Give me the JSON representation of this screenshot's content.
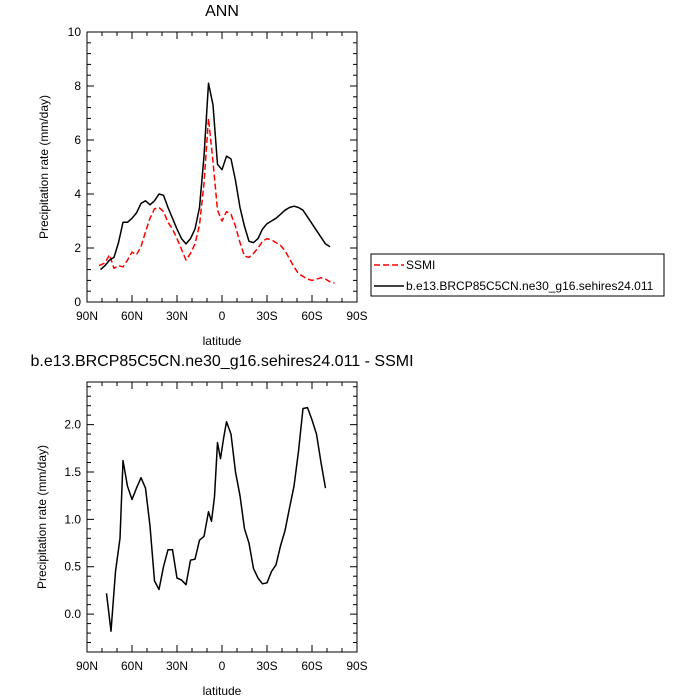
{
  "chart_data": [
    {
      "type": "line",
      "title": "ANN",
      "xlabel": "latitude",
      "ylabel": "Precipitation rate (mm/day)",
      "xlim": [
        90,
        -90
      ],
      "ylim": [
        0,
        10
      ],
      "x_tick_values": [
        90,
        60,
        30,
        0,
        -30,
        -60,
        -90
      ],
      "x_tick_labels": [
        "90N",
        "60N",
        "30N",
        "0",
        "30S",
        "60S",
        "90S"
      ],
      "y_tick_values": [
        0,
        2,
        4,
        6,
        8,
        10
      ],
      "y_tick_labels": [
        "0",
        "2",
        "4",
        "6",
        "8",
        "10"
      ],
      "legend_position": "right-outside",
      "series": [
        {
          "name": "SSMI",
          "color": "#ff0000",
          "dash": "dashed",
          "x": [
            82,
            78,
            75,
            72,
            69,
            66,
            63,
            60,
            57,
            54,
            51,
            48,
            45,
            42,
            39,
            36,
            33,
            30,
            27,
            24,
            21,
            18,
            15,
            12,
            9,
            6,
            3,
            0,
            -3,
            -6,
            -9,
            -12,
            -15,
            -18,
            -21,
            -24,
            -27,
            -30,
            -33,
            -36,
            -39,
            -42,
            -45,
            -48,
            -51,
            -54,
            -57,
            -60,
            -63,
            -66,
            -69,
            -72,
            -75
          ],
          "y": [
            1.35,
            1.45,
            1.75,
            1.25,
            1.35,
            1.3,
            1.55,
            1.85,
            1.75,
            2.05,
            2.6,
            3.1,
            3.45,
            3.5,
            3.35,
            2.95,
            2.7,
            2.35,
            1.95,
            1.55,
            1.8,
            2.15,
            2.85,
            4.4,
            6.8,
            5.2,
            3.4,
            3.0,
            3.35,
            3.25,
            2.8,
            2.2,
            1.7,
            1.65,
            1.8,
            2.0,
            2.25,
            2.35,
            2.3,
            2.2,
            2.1,
            1.9,
            1.6,
            1.3,
            1.05,
            0.95,
            0.85,
            0.8,
            0.85,
            0.9,
            0.85,
            0.75,
            0.7
          ]
        },
        {
          "name": "b.e13.BRCP85C5CN.ne30_g16.sehires24.011",
          "color": "#000000",
          "dash": "solid",
          "x": [
            81,
            78,
            75,
            72,
            69,
            66,
            63,
            60,
            57,
            54,
            51,
            48,
            45,
            42,
            39,
            36,
            33,
            30,
            27,
            24,
            21,
            18,
            15,
            12,
            9,
            6,
            3,
            0,
            -3,
            -6,
            -9,
            -12,
            -15,
            -18,
            -21,
            -24,
            -27,
            -30,
            -33,
            -36,
            -39,
            -42,
            -45,
            -48,
            -51,
            -54,
            -57,
            -60,
            -63,
            -66,
            -69,
            -72
          ],
          "y": [
            1.2,
            1.35,
            1.55,
            1.65,
            2.2,
            2.95,
            2.95,
            3.1,
            3.3,
            3.65,
            3.75,
            3.6,
            3.75,
            4.0,
            3.95,
            3.5,
            3.1,
            2.7,
            2.35,
            2.15,
            2.35,
            2.7,
            3.5,
            5.4,
            8.1,
            7.3,
            5.1,
            4.9,
            5.4,
            5.3,
            4.5,
            3.5,
            2.8,
            2.25,
            2.2,
            2.35,
            2.7,
            2.9,
            3.0,
            3.1,
            3.25,
            3.4,
            3.5,
            3.55,
            3.5,
            3.4,
            3.15,
            2.9,
            2.65,
            2.4,
            2.15,
            2.05
          ]
        }
      ]
    },
    {
      "type": "line",
      "title": "b.e13.BRCP85C5CN.ne30_g16.sehires24.011 - SSMI",
      "xlabel": "latitude",
      "ylabel": "Precipitation rate (mm/day)",
      "xlim": [
        90,
        -90
      ],
      "ylim": [
        -0.4,
        2.45
      ],
      "x_tick_values": [
        90,
        60,
        30,
        0,
        -30,
        -60,
        -90
      ],
      "x_tick_labels": [
        "90N",
        "60N",
        "30N",
        "0",
        "30S",
        "60S",
        "90S"
      ],
      "y_tick_values": [
        0,
        0.5,
        1.0,
        1.5,
        2.0
      ],
      "y_tick_labels": [
        "0.0",
        "0.5",
        "1.0",
        "1.5",
        "2.0"
      ],
      "series": [
        {
          "color": "#000000",
          "dash": "solid",
          "x": [
            77,
            74,
            71,
            68,
            66,
            63,
            60,
            57,
            54,
            51,
            48,
            45,
            42,
            39,
            36,
            33,
            30,
            27,
            24,
            21,
            18,
            15,
            12,
            9,
            7,
            5,
            3,
            1,
            -1,
            -3,
            -6,
            -9,
            -12,
            -15,
            -18,
            -21,
            -24,
            -27,
            -30,
            -33,
            -36,
            -39,
            -42,
            -45,
            -48,
            -51,
            -54,
            -57,
            -60,
            -63,
            -66,
            -69
          ],
          "y": [
            0.22,
            -0.18,
            0.45,
            0.8,
            1.62,
            1.35,
            1.21,
            1.33,
            1.44,
            1.33,
            0.93,
            0.35,
            0.26,
            0.5,
            0.68,
            0.68,
            0.38,
            0.36,
            0.31,
            0.57,
            0.58,
            0.78,
            0.82,
            1.08,
            0.98,
            1.24,
            1.81,
            1.64,
            1.85,
            2.03,
            1.9,
            1.5,
            1.25,
            0.9,
            0.75,
            0.48,
            0.38,
            0.32,
            0.33,
            0.45,
            0.52,
            0.72,
            0.88,
            1.12,
            1.35,
            1.72,
            2.17,
            2.18,
            2.05,
            1.9,
            1.6,
            1.33
          ]
        }
      ]
    }
  ]
}
